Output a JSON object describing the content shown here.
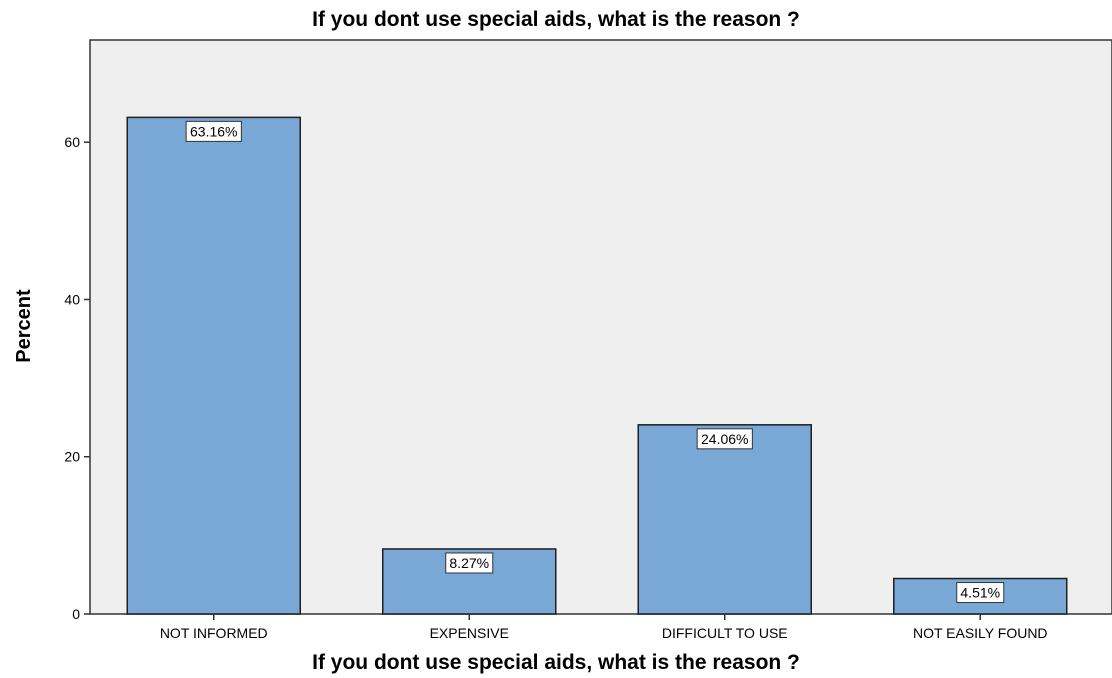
{
  "chart_data": {
    "type": "bar",
    "title": "If you dont use special aids, what is the reason ?",
    "xlabel": "If you dont use special aids, what is the reason ?",
    "ylabel": "Percent",
    "categories": [
      "NOT INFORMED",
      "EXPENSIVE",
      "DIFFICULT TO USE",
      "NOT EASILY FOUND"
    ],
    "values": [
      63.16,
      8.27,
      24.06,
      4.51
    ],
    "data_labels": [
      "63.16%",
      "8.27%",
      "24.06%",
      "4.51%"
    ],
    "y_ticks": [
      0,
      20,
      40,
      60
    ],
    "ylim": [
      0,
      73
    ],
    "grid": false,
    "legend": "none",
    "colors": {
      "bar_fill": "#79a7d6",
      "bar_stroke": "#1f1f1f",
      "plot_background": "#efefef",
      "label_box": "#ffffff"
    }
  }
}
